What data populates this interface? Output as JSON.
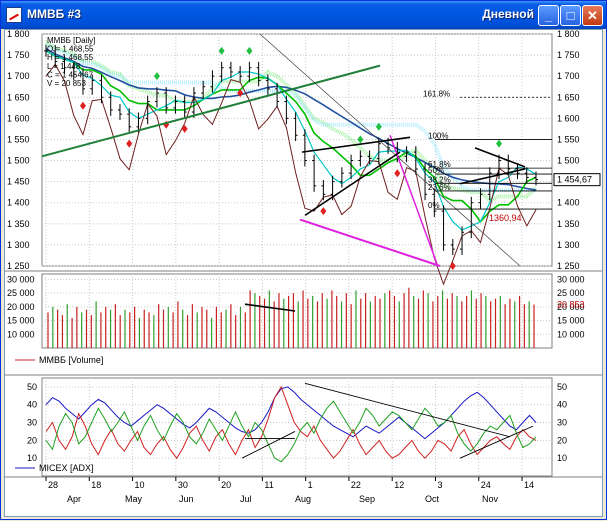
{
  "window": {
    "title": "ММВБ #3",
    "period": "Дневной",
    "buttons": {
      "minimize": "_",
      "maximize": "□",
      "close": "✕"
    }
  },
  "colors": {
    "bg": "#ffffff",
    "grid": "#c8c8c8",
    "candle": "#000000",
    "kijun": "#00c000",
    "tenkan": "#00c8c8",
    "senkou_a": "#90f090",
    "senkou_b": "#a0e8ff",
    "ma_blue": "#2050a0",
    "osc_brown": "#702020",
    "trend_green": "#20803a",
    "trend_magenta": "#e020e0",
    "up_marker": "#20c040",
    "down_marker": "#e02020",
    "vol_red": "#c82020",
    "vol_green": "#30a030",
    "adx_blue": "#1818c8",
    "di_plus": "#d02020",
    "di_minus": "#20a020",
    "current_price_label": "#c00000"
  },
  "chart_data": [
    {
      "type": "line",
      "name": "price",
      "legend": [
        "ММВБ [Daily]",
        "O = 1 468,55",
        "H = 1 468,55",
        "L = 1 448",
        "C = 1 454,67",
        "V = 20 853"
      ],
      "ylim": [
        1250,
        1800
      ],
      "y_ticks": [
        "1 800",
        "1 750",
        "1 700",
        "1 650",
        "1 600",
        "1 550",
        "1 500",
        "1 450",
        "1 400",
        "1 350",
        "1 300",
        "1 250"
      ],
      "last_value_label": "1 454,67",
      "fib_labels": [
        "161.8%",
        "100%",
        "61.8%",
        "50%",
        "38.2%",
        "23.6%",
        "0%"
      ],
      "fib_values": [
        1650,
        1550,
        1482,
        1468,
        1446,
        1428,
        1385
      ],
      "low_label": "1360,94",
      "low_value": 1361,
      "closes": [
        1760,
        1735,
        1720,
        1705,
        1670,
        1690,
        1650,
        1620,
        1610,
        1580,
        1600,
        1640,
        1660,
        1625,
        1640,
        1615,
        1660,
        1675,
        1700,
        1720,
        1710,
        1700,
        1720,
        1690,
        1670,
        1640,
        1600,
        1560,
        1500,
        1440,
        1420,
        1450,
        1470,
        1500,
        1510,
        1505,
        1540,
        1530,
        1510,
        1520,
        1480,
        1420,
        1380,
        1300,
        1290,
        1330,
        1400,
        1420,
        1470,
        1500,
        1480,
        1470,
        1460,
        1455
      ]
    },
    {
      "type": "bar",
      "name": "volume",
      "legend": "ММВБ [Volume]",
      "ylim": [
        5000,
        32000
      ],
      "y_ticks": [
        "30 000",
        "25 000",
        "20 000",
        "15 000",
        "10 000"
      ],
      "last_value_label": "20 853",
      "values": [
        18000,
        20000,
        19000,
        17000,
        21000,
        16000,
        20000,
        18000,
        19000,
        17000,
        22000,
        18000,
        20000,
        19000,
        21000,
        17000,
        19000,
        18000,
        20000,
        16000,
        19000,
        18000,
        17000,
        21000,
        19000,
        20000,
        18000,
        22000,
        19000,
        17000,
        21000,
        18000,
        20000,
        19000,
        16000,
        20000,
        18000,
        19000,
        21000,
        17000,
        20000,
        18000,
        26000,
        25000,
        24000,
        23000,
        26000,
        22000,
        25000,
        23000,
        24000,
        25000,
        22000,
        26000,
        23000,
        24000,
        22000,
        25000,
        23000,
        26000,
        24000,
        22000,
        25000,
        21000,
        26000,
        23000,
        25000,
        22000,
        24000,
        23000,
        25000,
        26000,
        24000,
        22000,
        25000,
        27000,
        24000,
        23000,
        26000,
        25000,
        22000,
        24000,
        26000,
        23000,
        25000,
        24000,
        22000,
        24000,
        26000,
        23000,
        25000,
        24000,
        22000,
        23000,
        24000,
        21000,
        23000,
        22000,
        24000,
        21000,
        22000,
        20853
      ]
    },
    {
      "type": "line",
      "name": "adx",
      "legend": "MICEX [ADX]",
      "ylim": [
        0,
        55
      ],
      "y_ticks": [
        "50",
        "40",
        "30",
        "20",
        "10"
      ],
      "series": [
        {
          "name": "ADX",
          "values": [
            40,
            44,
            42,
            38,
            35,
            32,
            36,
            40,
            43,
            41,
            37,
            33,
            30,
            28,
            31,
            34,
            37,
            40,
            38,
            35,
            32,
            29,
            27,
            30,
            34,
            38,
            36,
            33,
            30,
            27,
            25,
            24,
            26,
            30,
            36,
            44,
            49,
            50,
            47,
            43,
            40,
            37,
            34,
            31,
            28,
            26,
            24,
            22,
            25,
            28,
            26,
            24,
            27,
            30,
            33,
            30,
            27,
            24,
            21,
            24,
            27,
            30,
            34,
            38,
            42,
            45,
            47,
            44,
            40,
            36,
            32,
            28,
            26,
            30,
            34,
            30
          ]
        },
        {
          "name": "+DI",
          "values": [
            25,
            30,
            20,
            15,
            22,
            35,
            28,
            18,
            12,
            20,
            26,
            18,
            14,
            20,
            25,
            16,
            12,
            18,
            22,
            15,
            10,
            16,
            24,
            28,
            20,
            14,
            22,
            26,
            18,
            12,
            20,
            26,
            16,
            22,
            32,
            44,
            50,
            40,
            30,
            25,
            22,
            28,
            20,
            15,
            10,
            14,
            20,
            26,
            18,
            12,
            16,
            20,
            14,
            10,
            12,
            16,
            20,
            14,
            10,
            14,
            20,
            18,
            14,
            22,
            26,
            18,
            12,
            16,
            20,
            22,
            18,
            15,
            22,
            26,
            22,
            20
          ]
        },
        {
          "name": "-DI",
          "values": [
            20,
            15,
            28,
            35,
            30,
            18,
            22,
            30,
            38,
            32,
            25,
            30,
            36,
            28,
            20,
            28,
            34,
            26,
            20,
            28,
            35,
            30,
            22,
            18,
            24,
            32,
            26,
            20,
            28,
            36,
            28,
            22,
            30,
            26,
            18,
            10,
            8,
            12,
            18,
            26,
            30,
            24,
            32,
            38,
            42,
            36,
            30,
            24,
            30,
            38,
            34,
            28,
            32,
            36,
            34,
            30,
            26,
            32,
            38,
            34,
            28,
            30,
            34,
            24,
            18,
            14,
            18,
            24,
            28,
            26,
            30,
            34,
            24,
            16,
            18,
            22
          ]
        }
      ]
    }
  ],
  "x_axis": {
    "day_labels": [
      "28",
      "18",
      "10",
      "30",
      "20",
      "11",
      "1",
      "22",
      "12",
      "3",
      "24",
      "14"
    ],
    "month_labels": [
      "Apr",
      "May",
      "Jun",
      "Jul",
      "Aug",
      "Sep",
      "Oct",
      "Nov"
    ]
  }
}
